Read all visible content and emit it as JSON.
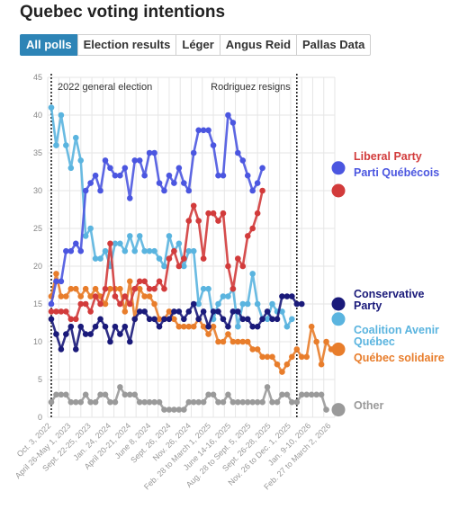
{
  "title": "Quebec voting intentions",
  "tabs": [
    {
      "label": "All polls",
      "active": true
    },
    {
      "label": "Election results",
      "active": false
    },
    {
      "label": "Léger",
      "active": false
    },
    {
      "label": "Angus Reid",
      "active": false
    },
    {
      "label": "Pallas Data",
      "active": false
    }
  ],
  "chart_data": {
    "type": "line",
    "ylim": [
      0,
      45
    ],
    "yticks": [
      0,
      5,
      10,
      15,
      20,
      25,
      30,
      35,
      40,
      45
    ],
    "grid": true,
    "xtick_labels": [
      "Oct. 3, 2022",
      "April 26-May 1, 2023",
      "Sept. 22-25, 2023",
      "Jan. 24, 2024",
      "April 20-21, 2024",
      "June 8, 2024",
      "Sept. 26, 2024",
      "Nov. 26, 2024",
      "Feb. 28 to March 1, 2025",
      "June 14-16, 2025",
      "Aug. 28 to Sept. 5, 2025",
      "Sept. 26-28, 2025",
      "Nov. 26 to Dec. 1, 2025",
      "Jan. 9-10, 2026",
      "Feb. 27 to March 2, 2026"
    ],
    "annotations": [
      {
        "text": "2022 general election",
        "at_index": 0
      },
      {
        "text": "Rodriguez resigns",
        "at_index": 50
      }
    ],
    "series": [
      {
        "name": "Other",
        "color": "#9a9a9a",
        "label_lines": [
          "Other"
        ],
        "values": [
          2,
          3,
          3,
          3,
          2,
          2,
          2,
          3,
          2,
          2,
          3,
          3,
          2,
          2,
          4,
          3,
          3,
          3,
          2,
          2,
          2,
          2,
          2,
          1,
          1,
          1,
          1,
          1,
          2,
          2,
          2,
          2,
          3,
          3,
          2,
          2,
          3,
          2,
          2,
          2,
          2,
          2,
          2,
          2,
          4,
          2,
          2,
          3,
          3,
          2,
          2,
          3,
          3,
          3,
          3,
          3,
          1
        ]
      },
      {
        "name": "Québec solidaire",
        "color": "#e87d2b",
        "label_lines": [
          "Québec solidaire"
        ],
        "values": [
          16,
          19,
          16,
          16,
          17,
          17,
          16,
          17,
          16,
          17,
          16,
          15,
          17,
          17,
          17,
          14,
          18,
          13,
          17,
          16,
          16,
          15,
          13,
          13,
          14,
          13,
          12,
          12,
          12,
          12,
          13,
          12,
          11,
          12,
          10,
          10,
          11,
          10,
          10,
          10,
          10,
          9,
          9,
          8,
          8,
          8,
          7,
          6,
          7,
          8,
          9,
          8,
          8,
          12,
          10,
          7,
          10,
          9
        ]
      },
      {
        "name": "Coalition Avenir Québec",
        "color": "#5ab4df",
        "label_lines": [
          "Coalition Avenir",
          "Québec"
        ],
        "values": [
          41,
          36,
          40,
          36,
          33,
          37,
          34,
          24,
          25,
          21,
          21,
          22,
          20,
          23,
          23,
          22,
          24,
          22,
          24,
          22,
          22,
          22,
          21,
          20,
          24,
          22,
          23,
          20,
          22,
          22,
          15,
          17,
          17,
          13,
          15,
          16,
          16,
          17,
          12,
          15,
          15,
          19,
          15,
          13,
          13,
          15,
          14,
          14,
          12,
          13
        ]
      },
      {
        "name": "Conservative Party",
        "color": "#1a1a7a",
        "label_lines": [
          "Conservative",
          "Party"
        ],
        "values": [
          13,
          11,
          9,
          11,
          12,
          9,
          12,
          11,
          11,
          12,
          13,
          12,
          10,
          12,
          11,
          12,
          10,
          13,
          14,
          14,
          13,
          13,
          12,
          13,
          13,
          14,
          14,
          13,
          14,
          15,
          13,
          14,
          12,
          14,
          14,
          13,
          12,
          14,
          14,
          13,
          13,
          12,
          12,
          13,
          14,
          13,
          13,
          16,
          16,
          16,
          15,
          15
        ]
      },
      {
        "name": "Liberal Party",
        "color": "#d23b3b",
        "label_lines": [
          "Liberal Party"
        ],
        "values": [
          14,
          14,
          14,
          14,
          13,
          13,
          15,
          15,
          14,
          16,
          15,
          17,
          23,
          16,
          15,
          16,
          15,
          17,
          18,
          18,
          17,
          17,
          18,
          17,
          21,
          22,
          20,
          21,
          26,
          28,
          26,
          21,
          27,
          27,
          26,
          27,
          20,
          17,
          21,
          20,
          24,
          25,
          27,
          30
        ]
      },
      {
        "name": "Parti Québécois",
        "color": "#4b56e0",
        "label_lines": [
          "Parti Québécois"
        ],
        "values": [
          15,
          18,
          18,
          22,
          22,
          23,
          22,
          30,
          31,
          32,
          30,
          34,
          33,
          32,
          32,
          33,
          29,
          34,
          34,
          32,
          35,
          35,
          31,
          30,
          32,
          31,
          33,
          31,
          30,
          35,
          38,
          38,
          38,
          36,
          32,
          32,
          40,
          39,
          35,
          34,
          32,
          30,
          31,
          33
        ]
      }
    ]
  }
}
